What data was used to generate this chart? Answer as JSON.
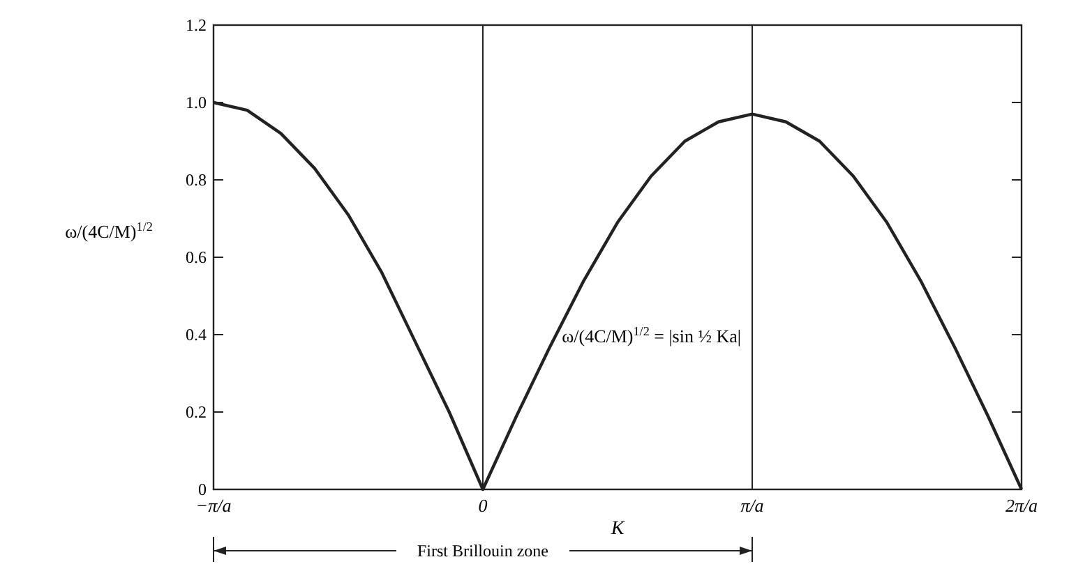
{
  "chart_data": {
    "type": "line",
    "xlabel": "K",
    "ylabel": "ω/(4C/M)$^{1/2}$",
    "x": [
      -1,
      -0.875,
      -0.75,
      -0.625,
      -0.5,
      -0.375,
      -0.25,
      -0.125,
      0,
      0.125,
      0.25,
      0.375,
      0.5,
      0.625,
      0.75,
      0.875,
      1,
      1.125,
      1.25,
      1.375,
      1.5,
      1.625,
      1.75,
      1.875,
      2
    ],
    "series": [
      {
        "color": "#222222",
        "values": [
          1.0,
          0.98,
          0.92,
          0.83,
          0.71,
          0.56,
          0.38,
          0.2,
          0,
          0.19,
          0.37,
          0.54,
          0.69,
          0.81,
          0.9,
          0.95,
          0.97,
          0.95,
          0.9,
          0.81,
          0.69,
          0.54,
          0.37,
          0.19,
          0
        ]
      }
    ],
    "xlim": [
      -1,
      2
    ],
    "xticks": [
      {
        "value": -1,
        "label": "−π/a"
      },
      0,
      {
        "value": 1,
        "label": "π/a"
      },
      {
        "value": 2,
        "label": "2π/a"
      }
    ],
    "ylim": [
      0,
      1.2
    ],
    "yticks": [
      0,
      0.2,
      0.4,
      0.6,
      0.8,
      {
        "value": 1,
        "label": "1.0"
      },
      1.2
    ],
    "grid": false,
    "marker": "none",
    "line_style": "solid",
    "ref_lines": [
      {
        "axis": "x",
        "value": 0,
        "color": "#222222"
      },
      {
        "axis": "x",
        "value": 1,
        "color": "#222222"
      }
    ],
    "annotations": [
      "ω/(4C/M)$^{1/2}$ = |sin ½ Ka|",
      "First Brillouin zone"
    ]
  }
}
